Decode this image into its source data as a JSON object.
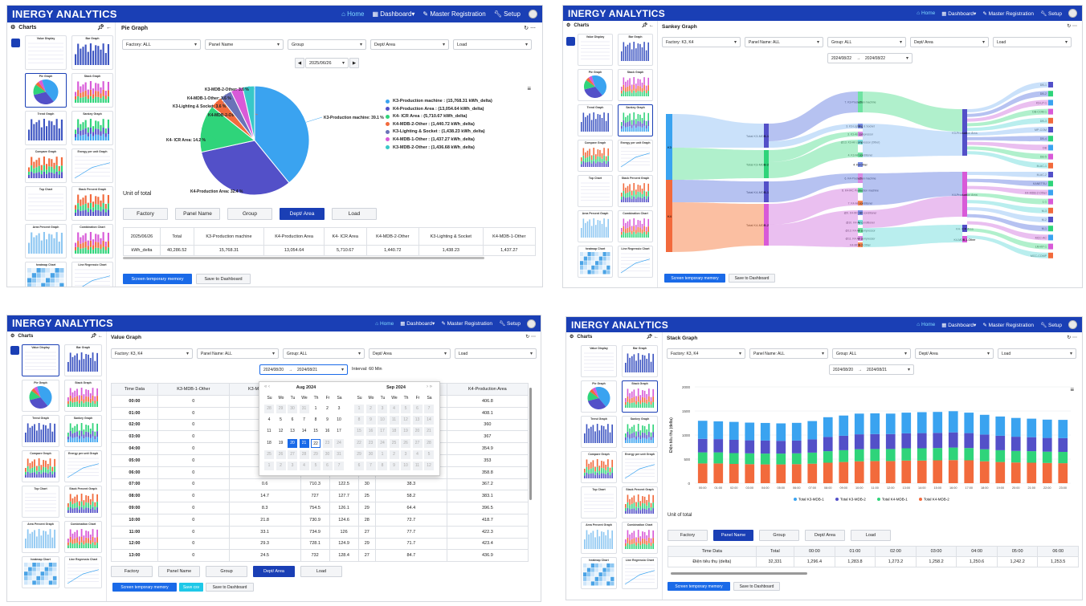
{
  "app": {
    "brand": "INERGY ANALYTICS",
    "nav": {
      "home": "Home",
      "dashboard": "Dashboard",
      "master": "Master Registration",
      "setup": "Setup"
    },
    "brand_color": "#1a3fb5"
  },
  "sidebar": {
    "title": "Charts",
    "thumbs": [
      "Value Display",
      "Bar Graph",
      "Pie Graph",
      "Stack Graph",
      "Trend Graph",
      "Sankey Graph",
      "Compare Graph",
      "Energy per unit Graph",
      "Top Chart",
      "Stack Percent Graph",
      "Area Percent Graph",
      "Combination Chart",
      "heatmap Chart",
      "Line Regressio Chart"
    ]
  },
  "p1": {
    "title": "Pie Graph",
    "filters": [
      "Factory: ALL",
      "Panel Name",
      "Group",
      "Dept/ Area",
      "Load"
    ],
    "date": "2025/06/26",
    "legend": [
      {
        "label": "K3-Production machine : (15,768.31 kWh_delta)",
        "color": "#3aa3f0"
      },
      {
        "label": "K4-Production Area : (13,054.64 kWh_delta)",
        "color": "#5350c8"
      },
      {
        "label": "K4- ICR Area : (5,710.67 kWh_delta)",
        "color": "#2fd47a"
      },
      {
        "label": "K4-MDB-2-Other : (1,440.72 kWh_delta)",
        "color": "#f26a3c"
      },
      {
        "label": "K3-Lighting & Socket : (1,438.23 kWh_delta)",
        "color": "#6a72b8"
      },
      {
        "label": "K4-MDB-1-Other : (1,437.27 kWh_delta)",
        "color": "#d85ad8"
      },
      {
        "label": "K3-MDB-2-Other : (1,436.68 kWh_delta)",
        "color": "#38c8c8"
      }
    ],
    "slice_labels": [
      "K3-Production machine: 39.1 %",
      "K4-Production Area: 32.4 %",
      "K4- ICR Area: 14.2 %",
      "K4-MDB-2-Other: 3.6 %",
      "K3-Lighting & Socket: 3.6 %",
      "K4-MDB-1-Other: 3.6 %",
      "K3-MDB-2-Other: 3.6 %"
    ],
    "unit": "Unit of total",
    "tabs": [
      "Factory",
      "Panel Name",
      "Group",
      "Dept/ Area",
      "Load"
    ],
    "table_headers": [
      "2025/06/26",
      "Total",
      "K3-Production machine",
      "K4-Production Area",
      "K4- ICR Area",
      "K4-MDB-2-Other",
      "K3-Lighting & Socket",
      "K4-MDB-1-Other"
    ],
    "table_row": [
      "kWh_delta",
      "40,286.52",
      "15,768.31",
      "13,054.64",
      "5,710.67",
      "1,440.72",
      "1,438.23",
      "1,437.27"
    ],
    "btn_screen": "Screen temporary memory",
    "btn_save": "Save to Dashboard"
  },
  "p2": {
    "title": "Sankey Graph",
    "filters": [
      "Factory: K3, K4",
      "Panel Name: ALL",
      "Group: ALL",
      "Dept/ Area",
      "Load"
    ],
    "date_from": "2024/08/22",
    "date_to": "2024/08/22",
    "nodes_left": [
      "K3",
      "K4"
    ],
    "nodes_mid": [
      "Total K3-MDB-1",
      "Total K3-MDB-2",
      "Total K4-MDB-1",
      "Total K4-MDB-2"
    ],
    "nodes_c": [
      "7. K3-Production machine",
      "3. K3-Lighting & Socket",
      "3. K3-Air compressor",
      "@13. K3-Air compressor (Other)",
      "4. K3-Air conditioner",
      "4. K3-Other",
      "6. K4-Production machine",
      "8. K4-IRC Production machine",
      "7. K4-Air conditioner",
      "@9. K4-IRC Air conditioner",
      "@10. K4-Air conditioner",
      "@13. K4-Air compressor",
      "@11. K4-Air compressor",
      "K4-MDB-2-Other"
    ],
    "nodes_d": [
      "K3-Production Area",
      "K4-Production Area",
      "K4- ICR Area",
      "K4-MDB-1-Other"
    ],
    "nodes_right": [
      "DB-1",
      "DB-2",
      "K3-LP-1",
      "DB-COM-1",
      "DB-3",
      "MP-COM",
      "DB-4",
      "DB",
      "DB-5",
      "M-AC-1",
      "M-AC-2",
      "KANETSU",
      "K4-MDB-2-Other",
      "L-1",
      "M-3",
      "M-2",
      "M-1",
      "MCC-AC",
      "LM-KP-1",
      "MCC-COMP"
    ],
    "btn_screen": "Screen temporary memory",
    "btn_save": "Save to Dashboard"
  },
  "p3": {
    "title": "Value Graph",
    "filters": [
      "Factory: K3, K4",
      "Panel Name: ALL",
      "Group: ALL",
      "Dept/ Area",
      "Load"
    ],
    "date_from": "2024/08/20",
    "date_to": "2024/08/21",
    "interval": "Interval: 60 Min",
    "headers": [
      "Time Data",
      "K3-MDB-1-Other",
      "K3-MDB-2-Other",
      "",
      "",
      "",
      "K4-MDB-2-Other",
      "K4-Production Area"
    ],
    "rows": [
      [
        "00:00",
        "0",
        "1.3",
        "",
        "",
        "",
        "41.3",
        "406.8"
      ],
      [
        "01:00",
        "0",
        "2.1",
        "",
        "",
        "",
        "40.6",
        "408.1"
      ],
      [
        "02:00",
        "0",
        "1",
        "",
        "",
        "",
        "37.7",
        "360"
      ],
      [
        "03:00",
        "0",
        "2.4",
        "",
        "",
        "",
        "37.2",
        "367"
      ],
      [
        "04:00",
        "0",
        "0.7",
        "",
        "",
        "",
        "37.2",
        "354.9"
      ],
      [
        "05:00",
        "0",
        "2",
        "",
        "",
        "",
        "34.5",
        "353"
      ],
      [
        "06:00",
        "0",
        "2.3",
        "",
        "",
        "",
        "37.6",
        "358.8"
      ],
      [
        "07:00",
        "0",
        "0.6",
        "710.3",
        "122.5",
        "30",
        "38.3",
        "367.2"
      ],
      [
        "08:00",
        "0",
        "14.7",
        "727",
        "127.7",
        "25",
        "58.2",
        "383.1"
      ],
      [
        "09:00",
        "0",
        "8.3",
        "754.5",
        "126.1",
        "29",
        "64.4",
        "396.5"
      ],
      [
        "10:00",
        "0",
        "21.8",
        "730.9",
        "124.6",
        "28",
        "72.7",
        "418.7"
      ],
      [
        "11:00",
        "0",
        "33.1",
        "734.9",
        "126",
        "27",
        "77.7",
        "422.3"
      ],
      [
        "12:00",
        "0",
        "29.3",
        "728.1",
        "124.9",
        "29",
        "71.7",
        "423.4"
      ],
      [
        "13:00",
        "0",
        "24.5",
        "732",
        "128.4",
        "27",
        "84.7",
        "436.9"
      ]
    ],
    "cal": {
      "aug": {
        "title": "Aug  2024",
        "days": [
          "Su",
          "Mo",
          "Tu",
          "We",
          "Th",
          "Fr",
          "Sa"
        ],
        "grid": [
          [
            "28",
            "29",
            "30",
            "31",
            "1",
            "2",
            "3"
          ],
          [
            "4",
            "5",
            "6",
            "7",
            "8",
            "9",
            "10"
          ],
          [
            "11",
            "12",
            "13",
            "14",
            "15",
            "16",
            "17"
          ],
          [
            "18",
            "19",
            "20",
            "21",
            "22",
            "23",
            "24"
          ],
          [
            "25",
            "26",
            "27",
            "28",
            "29",
            "30",
            "31"
          ],
          [
            "1",
            "2",
            "3",
            "4",
            "5",
            "6",
            "7"
          ]
        ]
      },
      "sep": {
        "title": "Sep  2024",
        "grid": [
          [
            "1",
            "2",
            "3",
            "4",
            "5",
            "6",
            "7"
          ],
          [
            "8",
            "9",
            "10",
            "11",
            "12",
            "13",
            "14"
          ],
          [
            "15",
            "16",
            "17",
            "18",
            "19",
            "20",
            "21"
          ],
          [
            "22",
            "23",
            "24",
            "25",
            "26",
            "27",
            "28"
          ],
          [
            "29",
            "30",
            "1",
            "2",
            "3",
            "4",
            "5"
          ],
          [
            "6",
            "7",
            "8",
            "9",
            "10",
            "11",
            "12"
          ]
        ]
      }
    },
    "tabs": [
      "Factory",
      "Panel Name",
      "Group",
      "Dept/ Area",
      "Load"
    ],
    "btn_screen": "Screen temporary memory",
    "btn_csv": "Save csv",
    "btn_save": "Save to Dashboard"
  },
  "p4": {
    "title": "Stack Graph",
    "filters": [
      "Factory: K3, K4",
      "Panel Name: ALL",
      "Group: ALL",
      "Dept/ Area",
      "Load"
    ],
    "date_from": "2024/08/20",
    "date_to": "2024/08/21",
    "unit": "Unit of total",
    "tabs": [
      "Factory",
      "Panel Name",
      "Group",
      "Dept/ Area",
      "Load"
    ],
    "table_headers": [
      "Time Data",
      "Total",
      "00:00",
      "01:00",
      "02:00",
      "03:00",
      "04:00",
      "05:00",
      "06:00"
    ],
    "table_row": [
      "Điện tiêu thụ (delta)",
      "32,331",
      "1,296.4",
      "1,283.8",
      "1,273.2",
      "1,258.2",
      "1,250.6",
      "1,242.2",
      "1,253.5"
    ],
    "btn_screen": "Screen temporary memory",
    "btn_save": "Save to Dashboard"
  },
  "chart_data": [
    {
      "type": "pie",
      "title": "",
      "categories": [
        "K3-Production machine",
        "K4-Production Area",
        "K4- ICR Area",
        "K4-MDB-2-Other",
        "K3-Lighting & Socket",
        "K4-MDB-1-Other",
        "K3-MDB-2-Other"
      ],
      "values": [
        15768.31,
        13054.64,
        5710.67,
        1440.72,
        1438.23,
        1437.27,
        1436.68
      ],
      "percent": [
        39.1,
        32.4,
        14.2,
        3.6,
        3.6,
        3.6,
        3.6
      ],
      "colors": [
        "#3aa3f0",
        "#5350c8",
        "#2fd47a",
        "#f26a3c",
        "#6a72b8",
        "#d85ad8",
        "#38c8c8"
      ],
      "legend": "right"
    },
    {
      "type": "bar",
      "stacked": true,
      "xlabel": "",
      "ylabel": "Điện tiêu thụ (delta)",
      "ylim": [
        0,
        2000
      ],
      "yticks": [
        0,
        500,
        1000,
        1500,
        2000
      ],
      "categories": [
        "00:00",
        "01:00",
        "02:00",
        "03:00",
        "04:00",
        "05:00",
        "06:00",
        "07:00",
        "08:00",
        "09:00",
        "10:00",
        "11:00",
        "12:00",
        "13:00",
        "14:00",
        "15:00",
        "16:00",
        "17:00",
        "18:00",
        "19:00",
        "20:00",
        "21:00",
        "22:00",
        "23:00"
      ],
      "series": [
        {
          "name": "Total K4-MDB-2",
          "color": "#f26a3c",
          "values": [
            410,
            410,
            400,
            395,
            390,
            390,
            395,
            405,
            425,
            440,
            455,
            460,
            460,
            470,
            470,
            475,
            480,
            475,
            455,
            440,
            430,
            425,
            420,
            415
          ]
        },
        {
          "name": "Total K4-MDB-1",
          "color": "#2fd47a",
          "values": [
            230,
            230,
            225,
            225,
            225,
            225,
            225,
            230,
            240,
            245,
            250,
            250,
            250,
            255,
            255,
            255,
            260,
            255,
            250,
            245,
            240,
            240,
            235,
            235
          ]
        },
        {
          "name": "Total K3-MDB-2",
          "color": "#5350c8",
          "values": [
            280,
            275,
            275,
            270,
            270,
            265,
            265,
            275,
            295,
            300,
            310,
            310,
            310,
            310,
            315,
            315,
            315,
            310,
            305,
            300,
            295,
            290,
            285,
            285
          ]
        },
        {
          "name": "Total K3-MDB-1",
          "color": "#3aa3f0",
          "values": [
            376,
            369,
            373,
            368,
            366,
            362,
            368,
            380,
            410,
            420,
            430,
            430,
            425,
            430,
            435,
            435,
            440,
            425,
            410,
            400,
            390,
            385,
            380,
            380
          ]
        }
      ],
      "legend": "bottom"
    }
  ]
}
